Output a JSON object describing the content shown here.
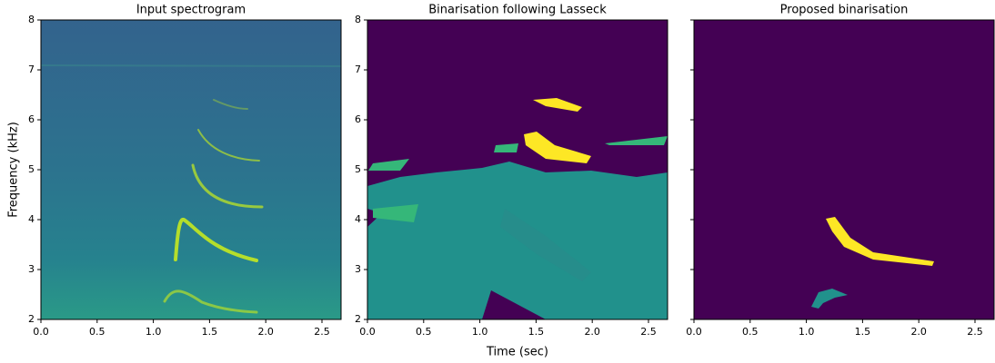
{
  "chart_data": [
    {
      "type": "image",
      "title": "Input spectrogram",
      "ylabel": "Frequency (kHz)",
      "xlim": [
        0,
        2.67
      ],
      "ylim": [
        2,
        8
      ],
      "xticks": [
        {
          "value": 0,
          "label": "0.0"
        },
        {
          "value": 0.5,
          "label": "0.5"
        },
        {
          "value": 1,
          "label": "1.0"
        },
        {
          "value": 1.5,
          "label": "1.5"
        },
        {
          "value": 2,
          "label": "2.0"
        },
        {
          "value": 2.5,
          "label": "2.5"
        }
      ],
      "yticks": [
        2,
        3,
        4,
        5,
        6,
        7,
        8
      ],
      "show_ytick_labels": true
    },
    {
      "type": "image",
      "title": "Binarisation following Lasseck",
      "xlabel": "Time (sec)",
      "xlim": [
        0,
        2.67
      ],
      "ylim": [
        2,
        8
      ],
      "xticks": [
        {
          "value": 0,
          "label": "0.0"
        },
        {
          "value": 0.5,
          "label": "0.5"
        },
        {
          "value": 1,
          "label": "1.0"
        },
        {
          "value": 1.5,
          "label": "1.5"
        },
        {
          "value": 2,
          "label": "2.0"
        },
        {
          "value": 2.5,
          "label": "2.5"
        }
      ],
      "yticks": [
        2,
        3,
        4,
        5,
        6,
        7,
        8
      ],
      "show_ytick_labels": true
    },
    {
      "type": "image",
      "title": "Proposed binarisation",
      "xlim": [
        0,
        2.67
      ],
      "ylim": [
        2,
        8
      ],
      "xticks": [
        {
          "value": 0,
          "label": "0.0"
        },
        {
          "value": 0.5,
          "label": "0.5"
        },
        {
          "value": 1,
          "label": "1.0"
        },
        {
          "value": 1.5,
          "label": "1.5"
        },
        {
          "value": 2,
          "label": "2.0"
        },
        {
          "value": 2.5,
          "label": "2.5"
        }
      ],
      "yticks": [
        2,
        3,
        4,
        5,
        6,
        7,
        8
      ],
      "show_ytick_labels": false
    }
  ]
}
